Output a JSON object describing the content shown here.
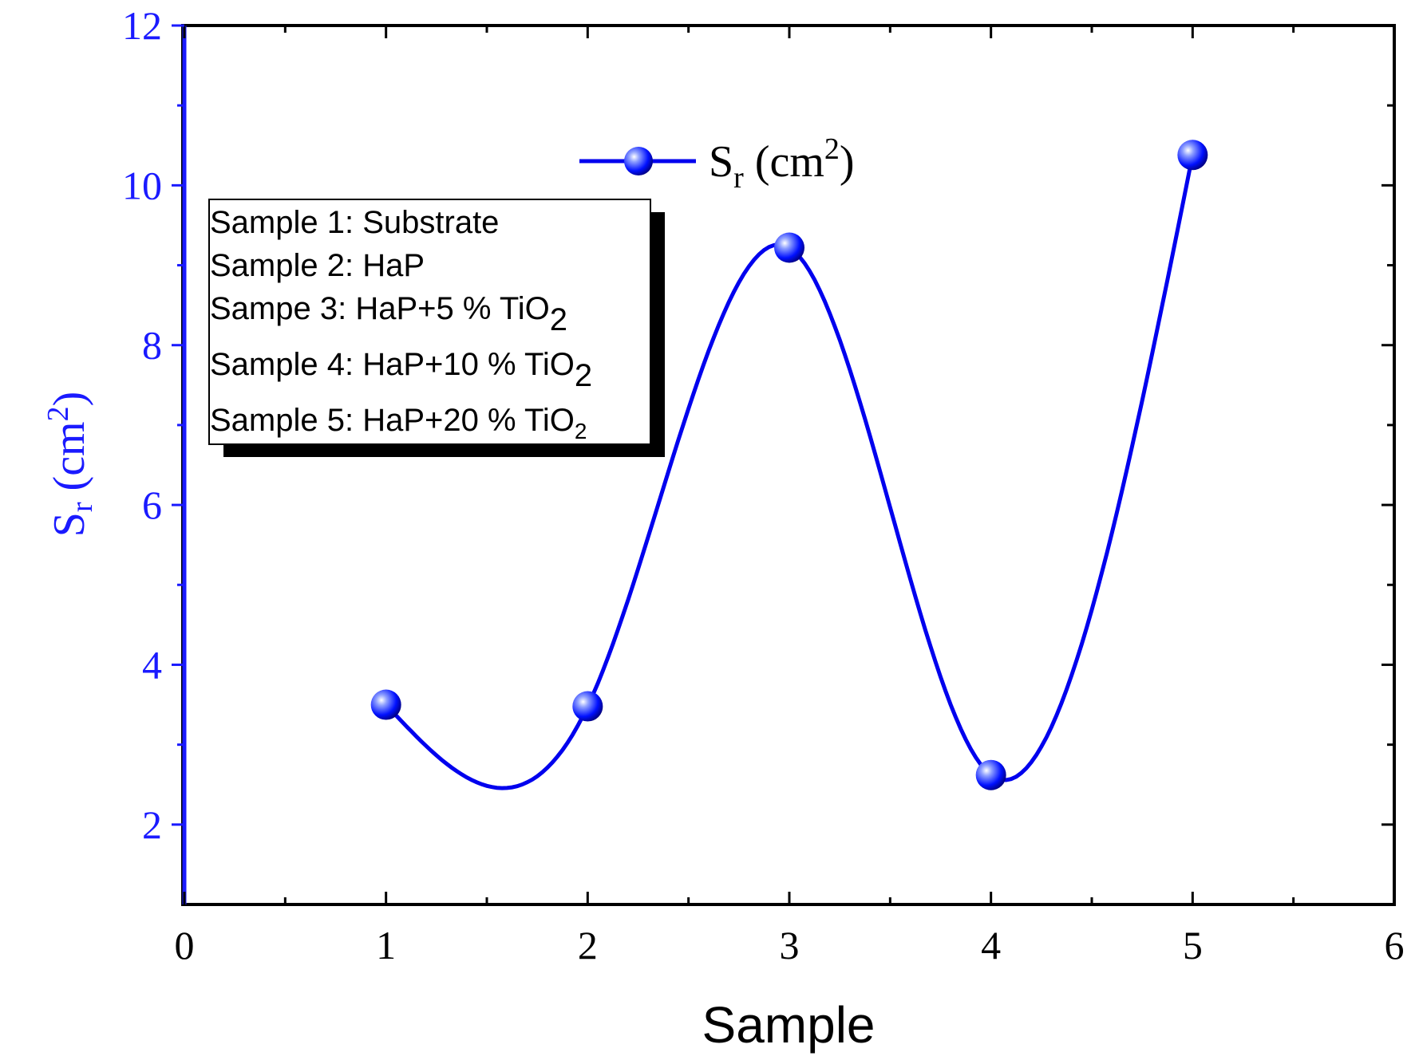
{
  "colors": {
    "series": "#0000ee",
    "x_axis": "#000000",
    "y_axis": "#1a1aff",
    "background": "#ffffff"
  },
  "chart_data": {
    "type": "line",
    "smoothed": true,
    "marker": "sphere",
    "x": [
      1,
      2,
      3,
      4,
      5
    ],
    "series": [
      {
        "name_base": "S",
        "name_sub": "r",
        "name_rest": " (cm",
        "name_sup": "2",
        "name_end": ")",
        "values": [
          3.5,
          3.48,
          9.22,
          2.62,
          10.38
        ]
      }
    ],
    "xlabel": "Sample",
    "ylabel": {
      "base": "S",
      "sub": "r",
      "rest": " (cm",
      "sup": "2",
      "end": ")"
    },
    "xlim": [
      0,
      6
    ],
    "ylim": [
      1,
      12
    ],
    "xticks": [
      0,
      1,
      2,
      3,
      4,
      5,
      6
    ],
    "xtick_labels": [
      "0",
      "1",
      "2",
      "3",
      "4",
      "5",
      "6"
    ],
    "yticks": [
      2,
      4,
      6,
      8,
      10,
      12
    ],
    "ytick_labels": [
      "2",
      "4",
      "6",
      "8",
      "10",
      "12"
    ],
    "grid": false,
    "legend_position": "top-center",
    "annotation_box": {
      "lines": [
        {
          "text": "Sample 1: Substrate",
          "sub": ""
        },
        {
          "text": "Sample 2: HaP",
          "sub": ""
        },
        {
          "text": "Sampe 3: HaP+5 % TiO",
          "sub": "2"
        },
        {
          "text": "Sample 4: HaP+10 % TiO",
          "sub": "2"
        },
        {
          "text": "Sample 5: HaP+20 % TiO",
          "sub": "2"
        }
      ]
    }
  }
}
